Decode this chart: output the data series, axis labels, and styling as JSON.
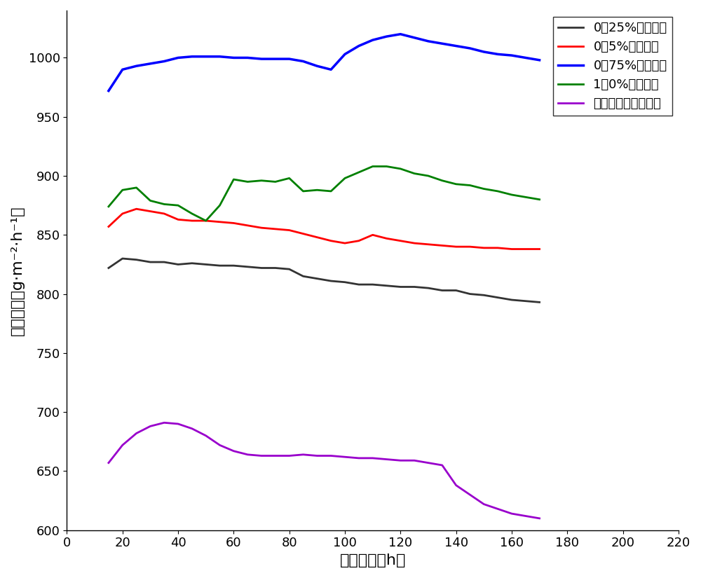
{
  "title": "",
  "xlabel": "蒸发时间（h）",
  "ylabel": "蒸发效率（g·m⁻²·h⁻¹）",
  "xlim": [
    0,
    220
  ],
  "ylim": [
    600,
    1040
  ],
  "xticks": [
    0,
    20,
    40,
    60,
    80,
    100,
    120,
    140,
    160,
    180,
    200,
    220
  ],
  "yticks": [
    600,
    650,
    700,
    750,
    800,
    850,
    900,
    950,
    1000
  ],
  "legend_labels": [
    "0．25%蒸发效率",
    "0．5%蒸发效率",
    "0．75%蒸发效率",
    "1．0%蒸发效率",
    "聚苯乙烯膜蒸发效率"
  ],
  "line_colors": [
    "#333333",
    "#ff0000",
    "#0000ff",
    "#008000",
    "#9900cc"
  ],
  "line_widths": [
    2.0,
    2.0,
    2.5,
    2.0,
    2.0
  ],
  "series": {
    "black": {
      "x": [
        15,
        20,
        25,
        30,
        35,
        40,
        45,
        50,
        55,
        60,
        65,
        70,
        75,
        80,
        85,
        90,
        95,
        100,
        105,
        110,
        115,
        120,
        125,
        130,
        135,
        140,
        145,
        150,
        155,
        160,
        165,
        170
      ],
      "y": [
        822,
        830,
        829,
        827,
        827,
        825,
        826,
        825,
        824,
        824,
        823,
        822,
        822,
        821,
        815,
        813,
        811,
        810,
        808,
        808,
        807,
        806,
        806,
        805,
        803,
        803,
        800,
        799,
        797,
        795,
        794,
        793
      ]
    },
    "red": {
      "x": [
        15,
        20,
        25,
        30,
        35,
        40,
        45,
        50,
        55,
        60,
        65,
        70,
        75,
        80,
        85,
        90,
        95,
        100,
        105,
        110,
        115,
        120,
        125,
        130,
        135,
        140,
        145,
        150,
        155,
        160,
        165,
        170
      ],
      "y": [
        857,
        868,
        872,
        870,
        868,
        863,
        862,
        862,
        861,
        860,
        858,
        856,
        855,
        854,
        851,
        848,
        845,
        843,
        845,
        850,
        847,
        845,
        843,
        842,
        841,
        840,
        840,
        839,
        839,
        838,
        838,
        838
      ]
    },
    "blue": {
      "x": [
        15,
        20,
        25,
        30,
        35,
        40,
        45,
        50,
        55,
        60,
        65,
        70,
        75,
        80,
        85,
        90,
        95,
        100,
        105,
        110,
        115,
        120,
        125,
        130,
        135,
        140,
        145,
        150,
        155,
        160,
        165,
        170
      ],
      "y": [
        972,
        990,
        993,
        995,
        997,
        1000,
        1001,
        1001,
        1001,
        1000,
        1000,
        999,
        999,
        999,
        997,
        993,
        990,
        1003,
        1010,
        1015,
        1018,
        1020,
        1017,
        1014,
        1012,
        1010,
        1008,
        1005,
        1003,
        1002,
        1000,
        998
      ]
    },
    "green": {
      "x": [
        15,
        20,
        25,
        30,
        35,
        40,
        45,
        50,
        55,
        60,
        65,
        70,
        75,
        80,
        85,
        90,
        95,
        100,
        105,
        110,
        115,
        120,
        125,
        130,
        135,
        140,
        145,
        150,
        155,
        160,
        165,
        170
      ],
      "y": [
        874,
        888,
        890,
        879,
        876,
        875,
        868,
        862,
        875,
        897,
        895,
        896,
        895,
        898,
        887,
        888,
        887,
        898,
        903,
        908,
        908,
        906,
        902,
        900,
        896,
        893,
        892,
        889,
        887,
        884,
        882,
        880
      ]
    },
    "purple": {
      "x": [
        15,
        20,
        25,
        30,
        35,
        40,
        45,
        50,
        55,
        60,
        65,
        70,
        75,
        80,
        85,
        90,
        95,
        100,
        105,
        110,
        115,
        120,
        125,
        130,
        135,
        140,
        145,
        150,
        155,
        160,
        165,
        170
      ],
      "y": [
        657,
        672,
        682,
        688,
        691,
        690,
        686,
        680,
        672,
        667,
        664,
        663,
        663,
        663,
        664,
        663,
        663,
        662,
        661,
        661,
        660,
        659,
        659,
        657,
        655,
        638,
        630,
        622,
        618,
        614,
        612,
        610
      ]
    }
  },
  "background_color": "#ffffff",
  "font_size_axis_label": 16,
  "font_size_tick": 13,
  "font_size_legend": 13
}
